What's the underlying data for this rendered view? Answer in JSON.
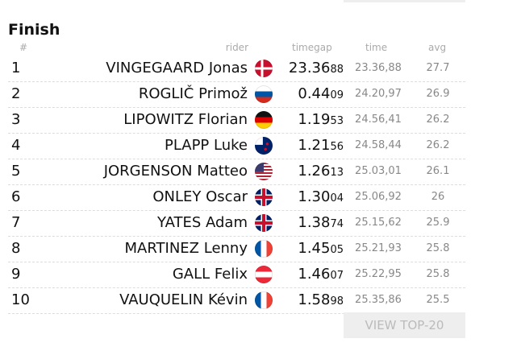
{
  "title": "Finish",
  "table": {
    "headers": [
      "#",
      "rider",
      "timegap",
      "time",
      "avg"
    ],
    "rows": [
      {
        "rank": 1,
        "rider": "VINGEGAARD Jonas",
        "timegap": "23.36",
        "timegap_fraction": "88",
        "time": "23.36,88",
        "avg": 27.7
      },
      {
        "rank": 2,
        "rider": "ROGLIČ Primož",
        "timegap": "0.44",
        "timegap_fraction": "09",
        "time": "24.20,97",
        "avg": 26.9
      },
      {
        "rank": 3,
        "rider": "LIPOWITZ Florian",
        "timegap": "1.19",
        "timegap_fraction": "53",
        "time": "24.56,41",
        "avg": 26.2
      },
      {
        "rank": 4,
        "rider": "PLAPP Luke",
        "timegap": "1.21",
        "timegap_fraction": "56",
        "time": "24.58,44",
        "avg": 26.2
      },
      {
        "rank": 5,
        "rider": "JORGENSON Matteo",
        "timegap": "1.26",
        "timegap_fraction": "13",
        "time": "25.03,01",
        "avg": 26.1
      },
      {
        "rank": 6,
        "rider": "ONLEY Oscar",
        "timegap": "1.30",
        "timegap_fraction": "04",
        "time": "25.06,92",
        "avg": 26
      },
      {
        "rank": 7,
        "rider": "YATES Adam",
        "timegap": "1.38",
        "timegap_fraction": "74",
        "time": "25.15,62",
        "avg": 25.9
      },
      {
        "rank": 8,
        "rider": "MARTINEZ Lenny",
        "timegap": "1.45",
        "timegap_fraction": "05",
        "time": "25.21,93",
        "avg": 25.8
      },
      {
        "rank": 9,
        "rider": "GALL Felix",
        "timegap": "1.46",
        "timegap_fraction": "07",
        "time": "25.22,95",
        "avg": 25.8
      },
      {
        "rank": 10,
        "rider": "VAUQUELIN Kévin",
        "timegap": "1.58",
        "timegap_fraction": "98",
        "time": "25.35,86",
        "avg": 25.5
      }
    ]
  },
  "button": "VIEW TOP-20"
}
